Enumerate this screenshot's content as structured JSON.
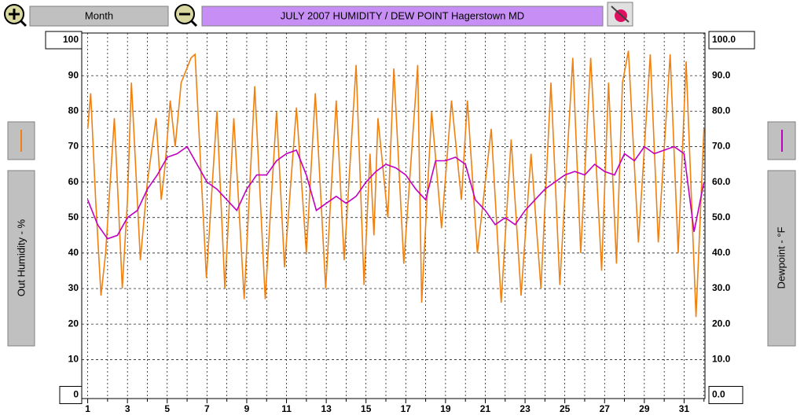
{
  "header": {
    "button": "Month"
  },
  "chart_data": {
    "type": "line",
    "title": "JULY 2007  HUMIDITY / DEW POINT  Hagerstown MD",
    "y_label": "Out Humidity - %",
    "y2_label": "Dewpoint - °F",
    "xlim": [
      0.7,
      32.05
    ],
    "xticks": [
      1,
      3,
      5,
      7,
      9,
      11,
      13,
      15,
      17,
      19,
      21,
      23,
      25,
      27,
      29,
      31
    ],
    "ylim": [
      -1,
      102
    ],
    "yticks": [
      0,
      10,
      20,
      30,
      40,
      50,
      60,
      70,
      80,
      90,
      100
    ],
    "y2lim": [
      -1,
      102
    ],
    "y2ticks": [
      {
        "value": 0,
        "label": "0.0"
      },
      {
        "value": 10,
        "label": "10.0"
      },
      {
        "value": 20,
        "label": "20.0"
      },
      {
        "value": 30,
        "label": "30.0"
      },
      {
        "value": 40,
        "label": "40.0"
      },
      {
        "value": 50,
        "label": "50.0"
      },
      {
        "value": 60,
        "label": "60.0"
      },
      {
        "value": 70,
        "label": "70.0"
      },
      {
        "value": 80,
        "label": "80.0"
      },
      {
        "value": 90,
        "label": "90.0"
      },
      {
        "value": 100,
        "label": "100.0"
      }
    ],
    "grid": true,
    "series": [
      {
        "name": "Out Humidity - %",
        "color": "#f08010",
        "x": [
          1.0,
          1.15,
          1.4,
          1.67,
          1.9,
          2.34,
          2.74,
          3.0,
          3.2,
          3.65,
          4.0,
          4.44,
          4.7,
          4.9,
          5.15,
          5.4,
          5.7,
          6.2,
          6.4,
          6.97,
          7.5,
          7.9,
          8.35,
          8.87,
          9.4,
          9.93,
          10.5,
          10.9,
          11.5,
          12.0,
          12.45,
          12.97,
          13.5,
          13.9,
          14.5,
          14.9,
          15.2,
          15.4,
          15.6,
          16.1,
          16.4,
          16.9,
          17.6,
          17.8,
          18.3,
          18.8,
          19.3,
          19.8,
          20.1,
          20.6,
          21.3,
          21.8,
          22.3,
          22.8,
          23.3,
          23.8,
          24.3,
          24.75,
          25.4,
          25.8,
          26.3,
          26.85,
          27.2,
          27.6,
          27.9,
          28.2,
          28.7,
          29.3,
          29.7,
          30.3,
          30.7,
          31.1,
          31.6,
          32.0
        ],
        "values": [
          75,
          85,
          55,
          28,
          40,
          78,
          30,
          55,
          88,
          38,
          60,
          78,
          55,
          65,
          83,
          70,
          88,
          95,
          96,
          33,
          80,
          30,
          78,
          27,
          87,
          27,
          80,
          36,
          81,
          40,
          85,
          30,
          83,
          38,
          93,
          31,
          68,
          45,
          78,
          50,
          92,
          37,
          93,
          26,
          80,
          47,
          83,
          55,
          83,
          40,
          75,
          26,
          72,
          28,
          68,
          30,
          88,
          31,
          95,
          40,
          95,
          35,
          88,
          37,
          88,
          97,
          43,
          96,
          43,
          96,
          40,
          94,
          22,
          75
        ]
      },
      {
        "name": "Dewpoint - °F",
        "color": "#c000c0",
        "axis": "y2",
        "x": [
          1,
          1.5,
          2,
          2.5,
          3,
          3.5,
          4,
          4.5,
          5,
          5.5,
          6,
          6.5,
          7,
          7.5,
          8,
          8.5,
          9,
          9.5,
          10,
          10.5,
          11,
          11.5,
          12,
          12.5,
          13,
          13.5,
          14,
          14.5,
          15,
          15.5,
          16,
          16.5,
          17,
          17.5,
          18,
          18.5,
          19,
          19.5,
          20,
          20.5,
          21,
          21.5,
          22,
          22.5,
          23,
          23.5,
          24,
          24.5,
          25,
          25.5,
          26,
          26.5,
          27,
          27.5,
          28,
          28.5,
          29,
          29.5,
          30,
          30.5,
          31,
          31.5,
          32
        ],
        "values": [
          55,
          48,
          44,
          45,
          50,
          52,
          58,
          62,
          67,
          68,
          70,
          65,
          60,
          58,
          55,
          52,
          58,
          62,
          62,
          66,
          68,
          69,
          62,
          52,
          54,
          56,
          54,
          56,
          60,
          63,
          65,
          64,
          62,
          58,
          55,
          66,
          66,
          67,
          65,
          55,
          52,
          48,
          50,
          48,
          52,
          55,
          58,
          60,
          62,
          63,
          62,
          65,
          63,
          62,
          68,
          66,
          70,
          68,
          69,
          70,
          68,
          46,
          60
        ]
      }
    ]
  }
}
